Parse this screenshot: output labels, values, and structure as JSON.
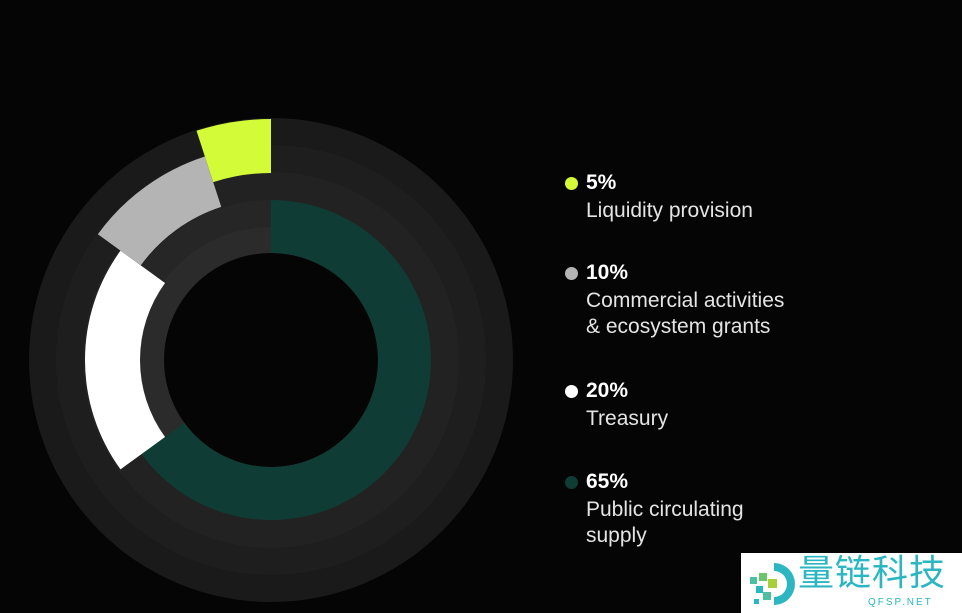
{
  "chart_data": {
    "type": "pie",
    "style": "radial donut with staggered rings",
    "categories": [
      "Liquidity provision",
      "Commercial activities\n& ecosystem grants",
      "Treasury",
      "Public circulating\nsupply"
    ],
    "values": [
      5,
      10,
      20,
      65
    ],
    "value_labels": [
      "5%",
      "10%",
      "20%",
      "65%"
    ],
    "colors": [
      "#d4fb37",
      "#b4b4b4",
      "#ffffff",
      "#0f3d36"
    ],
    "legend_position": "right"
  },
  "background_color": "#050505",
  "watermark": {
    "title": "量链科技",
    "subtitle": "QFSP.NET"
  }
}
